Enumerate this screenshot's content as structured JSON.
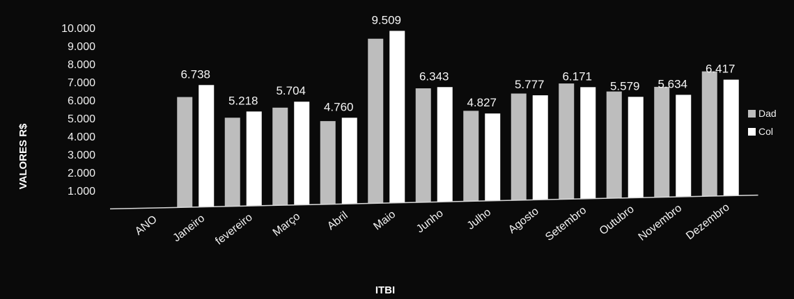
{
  "chart_data": {
    "type": "bar",
    "title": "",
    "xlabel": "ITBI",
    "ylabel": "VALORES R$",
    "categories": [
      "ANO",
      "Janeiro",
      "fevereiro",
      "Março",
      "Abril",
      "Maio",
      "Junho",
      "Julho",
      "Agosto",
      "Setembro",
      "Outubro",
      "Novembro",
      "Dezembro"
    ],
    "y_ticks": [
      "1.000",
      "2.000",
      "3.000",
      "4.000",
      "5.000",
      "6.000",
      "7.000",
      "8.000",
      "9.000",
      "10.000"
    ],
    "ylim": [
      0,
      10000
    ],
    "grid": false,
    "legend_position": "right",
    "series": [
      {
        "name": "Dad",
        "color": "#bdbdbd",
        "values": [
          0,
          6100,
          4900,
          5400,
          4600,
          9100,
          6300,
          5000,
          5900,
          6400,
          5900,
          6100,
          6900
        ]
      },
      {
        "name": "Col",
        "color": "#ffffff",
        "values": [
          0,
          6738,
          5218,
          5704,
          4760,
          9509,
          6343,
          4827,
          5777,
          6171,
          5579,
          5634,
          6417
        ],
        "data_labels": [
          "",
          "6.738",
          "5.218",
          "5.704",
          "4.760",
          "9.509",
          "6.343",
          "4.827",
          "5.777",
          "6.171",
          "5.579",
          "5.634",
          "6.417"
        ]
      }
    ]
  }
}
